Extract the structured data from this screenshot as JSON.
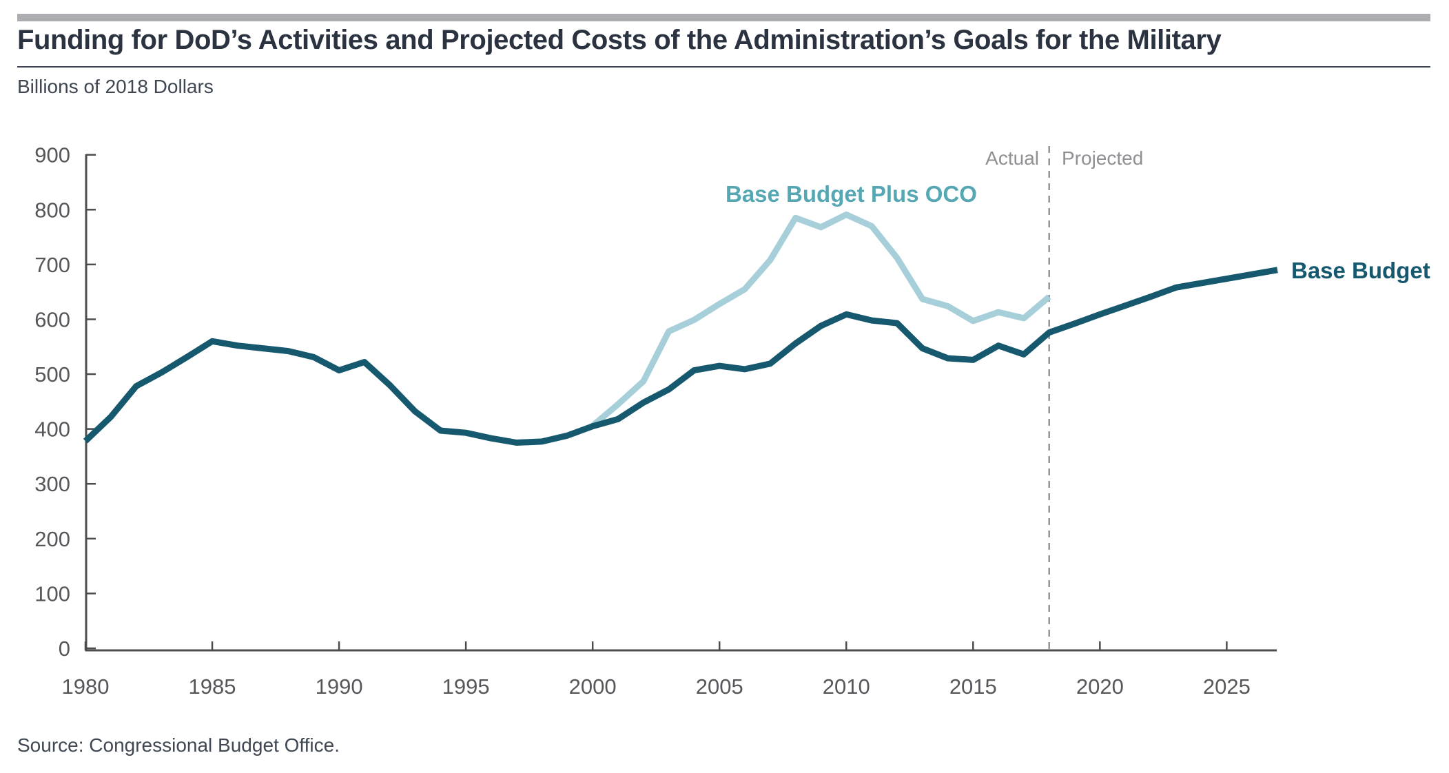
{
  "header": {
    "title": "Funding for DoD’s Activities and Projected Costs of the Administration’s Goals for the Military",
    "subtitle": "Billions of 2018 Dollars"
  },
  "annotations": {
    "actual_label": "Actual",
    "projected_label": "Projected",
    "divider_year": 2018
  },
  "footer": {
    "source": "Source: Congressional Budget Office."
  },
  "colors": {
    "base_budget_line": "#16586E",
    "base_budget_plus_oco_line": "#A7CFD9",
    "oco_label_text": "#55A7B3",
    "axis": "#4B4C4E",
    "tick_text": "#55575B",
    "zone_text": "#8E9093",
    "top_bar": "#ABADB0",
    "title_text": "#2B3340"
  },
  "chart_data": {
    "type": "line",
    "title": "Funding for DoD’s Activities and Projected Costs of the Administration’s Goals for the Military",
    "units": "Billions of 2018 Dollars",
    "xlabel": "",
    "ylabel": "Billions of 2018 Dollars",
    "xlim": [
      1980,
      2027
    ],
    "ylim": [
      0,
      900
    ],
    "xticks": [
      1980,
      1985,
      1990,
      1995,
      2000,
      2005,
      2010,
      2015,
      2020,
      2025
    ],
    "yticks": [
      0,
      100,
      200,
      300,
      400,
      500,
      600,
      700,
      800,
      900
    ],
    "grid": false,
    "legend_position": "inline-labels",
    "actual_projected_divider_x": 2018,
    "series": [
      {
        "name": "Base Budget",
        "color": "#16586E",
        "label_color": "#16586E",
        "x": [
          1980,
          1981,
          1982,
          1983,
          1984,
          1985,
          1986,
          1987,
          1988,
          1989,
          1990,
          1991,
          1992,
          1993,
          1994,
          1995,
          1996,
          1997,
          1998,
          1999,
          2000,
          2001,
          2002,
          2003,
          2004,
          2005,
          2006,
          2007,
          2008,
          2009,
          2010,
          2011,
          2012,
          2013,
          2014,
          2015,
          2016,
          2017,
          2018,
          2019,
          2020,
          2021,
          2022,
          2023,
          2024,
          2025,
          2026,
          2027
        ],
        "values": [
          378,
          422,
          478,
          503,
          531,
          560,
          552,
          547,
          542,
          531,
          507,
          522,
          480,
          432,
          397,
          393,
          383,
          375,
          377,
          388,
          405,
          418,
          448,
          472,
          507,
          515,
          509,
          519,
          556,
          588,
          609,
          598,
          593,
          547,
          529,
          526,
          552,
          536,
          576,
          592,
          609,
          625,
          641,
          658,
          666,
          674,
          682,
          690
        ]
      },
      {
        "name": "Base Budget Plus OCO",
        "color": "#A7CFD9",
        "label_color": "#55A7B3",
        "x": [
          2000,
          2001,
          2002,
          2003,
          2004,
          2005,
          2006,
          2007,
          2008,
          2009,
          2010,
          2011,
          2012,
          2013,
          2014,
          2015,
          2016,
          2017,
          2018
        ],
        "values": [
          406,
          445,
          487,
          578,
          599,
          628,
          655,
          708,
          785,
          768,
          791,
          770,
          712,
          637,
          624,
          597,
          613,
          602,
          641
        ]
      }
    ]
  }
}
